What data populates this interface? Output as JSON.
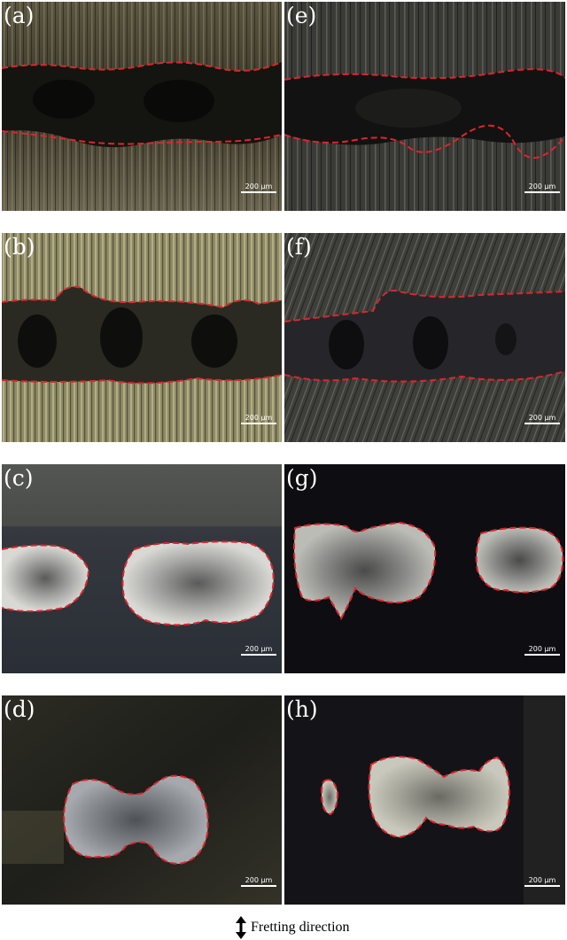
{
  "panels": [
    {
      "label": "(a)",
      "scale": "200 µm"
    },
    {
      "label": "(e)",
      "scale": "200 µm"
    },
    {
      "label": "(b)",
      "scale": "200 µm"
    },
    {
      "label": "(f)",
      "scale": "200 µm"
    },
    {
      "label": "(c)",
      "scale": "200 µm"
    },
    {
      "label": "(g)",
      "scale": "200 µm"
    },
    {
      "label": "(d)",
      "scale": "200 µm"
    },
    {
      "label": "(h)",
      "scale": "200 µm"
    }
  ],
  "legend": {
    "label": "Fretting direction",
    "icon": "double-arrow-vertical-icon"
  },
  "colors": {
    "boundary": "#e0242a",
    "background": "#ffffff"
  }
}
